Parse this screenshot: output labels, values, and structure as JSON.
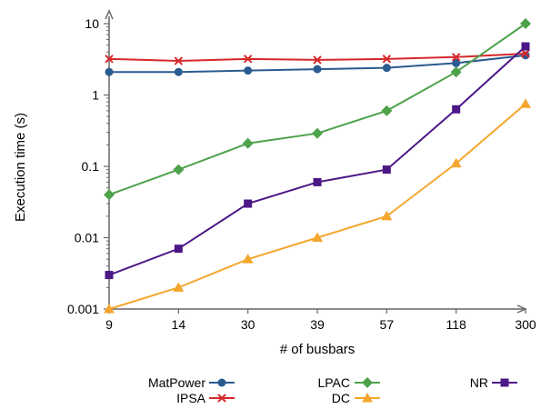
{
  "chart_data": {
    "type": "line",
    "title": "",
    "xlabel": "# of busbars",
    "ylabel": "Execution time (s)",
    "yscale": "log",
    "ylim": [
      0.001,
      10
    ],
    "yticks": [
      {
        "value": 0.001,
        "label": "0.001"
      },
      {
        "value": 0.01,
        "label": "0.01"
      },
      {
        "value": 0.1,
        "label": "0.1"
      },
      {
        "value": 1,
        "label": "1"
      },
      {
        "value": 10,
        "label": "10"
      }
    ],
    "categories": [
      "9",
      "14",
      "30",
      "39",
      "57",
      "118",
      "300"
    ],
    "grid": false,
    "legend_position": "bottom",
    "series": [
      {
        "name": "MatPower",
        "color": "#2a5b8f",
        "marker": "circle",
        "values": [
          2.1,
          2.1,
          2.2,
          2.3,
          2.4,
          2.8,
          3.6
        ]
      },
      {
        "name": "IPSA",
        "color": "#d6282b",
        "marker": "x",
        "values": [
          3.2,
          3.0,
          3.2,
          3.1,
          3.2,
          3.4,
          3.8
        ]
      },
      {
        "name": "LPAC",
        "color": "#4ea24a",
        "marker": "diamond",
        "values": [
          0.04,
          0.09,
          0.21,
          0.29,
          0.6,
          2.1,
          10
        ]
      },
      {
        "name": "DC",
        "color": "#f4a62e",
        "marker": "triangle",
        "values": [
          0.001,
          0.002,
          0.005,
          0.01,
          0.02,
          0.11,
          0.75
        ]
      },
      {
        "name": "NR",
        "color": "#4c1787",
        "marker": "square",
        "values": [
          0.003,
          0.007,
          0.03,
          0.06,
          0.09,
          0.63,
          4.8
        ]
      }
    ]
  }
}
